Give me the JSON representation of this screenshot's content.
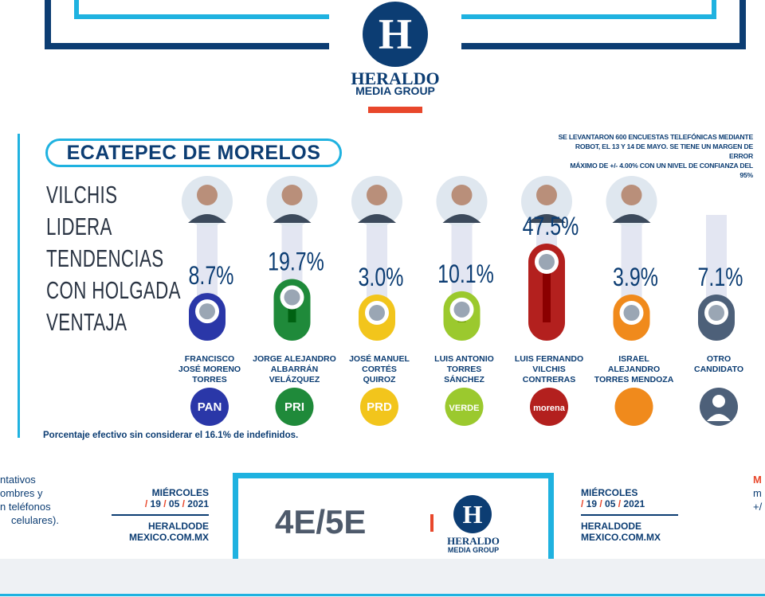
{
  "brand": {
    "logo_letter": "H",
    "logo_name": "HERALDO",
    "logo_sub": "MEDIA GROUP"
  },
  "colors": {
    "navy": "#0c3d73",
    "cyan": "#1fb2e0",
    "accent": "#e8472b"
  },
  "chart_data": {
    "type": "bar",
    "title": "ECATEPEC DE MORELOS",
    "headline": [
      "VILCHIS",
      "LIDERA",
      "TENDENCIAS",
      "CON HOLGADA",
      "VENTAJA"
    ],
    "methodology_note": [
      "SE LEVANTARON 600 ENCUESTAS TELEFÓNICAS MEDIANTE",
      "ROBOT, EL 13 Y 14 DE MAYO. SE TIENE UN MARGEN DE ERROR",
      "MÁXIMO DE +/- 4.00% CON UN NIVEL DE CONFIANZA DEL 95%"
    ],
    "unit": "%",
    "ylim": [
      0,
      50
    ],
    "candidates": [
      {
        "name_lines": [
          "FRANCISCO",
          "JOSÉ MORENO",
          "TORRES"
        ],
        "value": 8.7,
        "label": "8.7%",
        "color": "#2a37a8",
        "party": "PAN"
      },
      {
        "name_lines": [
          "JORGE ALEJANDRO",
          "ALBARRÁN",
          "VELÁZQUEZ"
        ],
        "value": 19.7,
        "label": "19.7%",
        "color": "#1f8a3a",
        "party": "PRI"
      },
      {
        "name_lines": [
          "JOSÉ MANUEL",
          "CORTÉS",
          "QUIROZ"
        ],
        "value": 3.0,
        "label": "3.0%",
        "color": "#f2c51c",
        "party": "PRD"
      },
      {
        "name_lines": [
          "LUIS ANTONIO",
          "TORRES",
          "SÁNCHEZ"
        ],
        "value": 10.1,
        "label": "10.1%",
        "color": "#9bc92e",
        "party": "VERDE"
      },
      {
        "name_lines": [
          "LUIS FERNANDO",
          "VILCHIS",
          "CONTRERAS"
        ],
        "value": 47.5,
        "label": "47.5%",
        "color": "#b3201e",
        "party": "morena"
      },
      {
        "name_lines": [
          "ISRAEL",
          "ALEJANDRO",
          "TORRES MENDOZA"
        ],
        "value": 3.9,
        "label": "3.9%",
        "color": "#f08a1c",
        "party": ""
      },
      {
        "name_lines": [
          "OTRO",
          "CANDIDATO"
        ],
        "value": 7.1,
        "label": "7.1%",
        "color": "#4d6079",
        "party": ""
      }
    ],
    "footnote": "Porcentaje efectivo sin considerar el 16.1% de indefinidos."
  },
  "footer": {
    "left_fragment": [
      "ntativos",
      "ombres y",
      "n teléfonos",
      "celulares)."
    ],
    "left_date": {
      "day": "MIÉRCOLES",
      "d": "19",
      "m": "05",
      "y": "2021",
      "site1": "HERALDODE",
      "site2": "MEXICO.COM.MX"
    },
    "page_label": "4E/5E",
    "right_date": {
      "day": "MIÉRCOLES",
      "d": "19",
      "m": "05",
      "y": "2021",
      "site1": "HERALDODE",
      "site2": "MEXICO.COM.MX"
    },
    "right_fragment": [
      "M",
      "m",
      "+/"
    ]
  }
}
